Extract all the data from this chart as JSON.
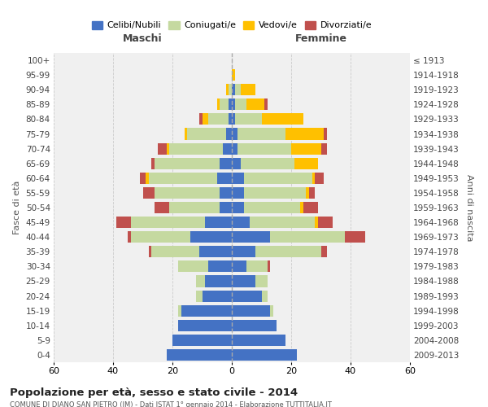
{
  "age_groups": [
    "0-4",
    "5-9",
    "10-14",
    "15-19",
    "20-24",
    "25-29",
    "30-34",
    "35-39",
    "40-44",
    "45-49",
    "50-54",
    "55-59",
    "60-64",
    "65-69",
    "70-74",
    "75-79",
    "80-84",
    "85-89",
    "90-94",
    "95-99",
    "100+"
  ],
  "birth_years": [
    "2009-2013",
    "2004-2008",
    "1999-2003",
    "1994-1998",
    "1989-1993",
    "1984-1988",
    "1979-1983",
    "1974-1978",
    "1969-1973",
    "1964-1968",
    "1959-1963",
    "1954-1958",
    "1949-1953",
    "1944-1948",
    "1939-1943",
    "1934-1938",
    "1929-1933",
    "1924-1928",
    "1919-1923",
    "1914-1918",
    "≤ 1913"
  ],
  "maschi": {
    "celibi": [
      22,
      20,
      18,
      17,
      10,
      9,
      8,
      11,
      14,
      9,
      4,
      4,
      5,
      4,
      3,
      2,
      1,
      1,
      0,
      0,
      0
    ],
    "coniugati": [
      0,
      0,
      0,
      1,
      2,
      3,
      10,
      16,
      20,
      25,
      17,
      22,
      23,
      22,
      18,
      13,
      7,
      3,
      1,
      0,
      0
    ],
    "vedovi": [
      0,
      0,
      0,
      0,
      0,
      0,
      0,
      0,
      0,
      0,
      0,
      0,
      1,
      0,
      1,
      1,
      2,
      1,
      1,
      0,
      0
    ],
    "divorziati": [
      0,
      0,
      0,
      0,
      0,
      0,
      0,
      1,
      1,
      5,
      5,
      4,
      2,
      1,
      3,
      0,
      1,
      0,
      0,
      0,
      0
    ]
  },
  "femmine": {
    "nubili": [
      22,
      18,
      15,
      13,
      10,
      8,
      5,
      8,
      13,
      6,
      4,
      4,
      4,
      3,
      2,
      2,
      1,
      1,
      1,
      0,
      0
    ],
    "coniugate": [
      0,
      0,
      0,
      1,
      2,
      4,
      7,
      22,
      25,
      22,
      19,
      21,
      23,
      18,
      18,
      16,
      9,
      4,
      2,
      0,
      0
    ],
    "vedove": [
      0,
      0,
      0,
      0,
      0,
      0,
      0,
      0,
      0,
      1,
      1,
      1,
      1,
      8,
      10,
      13,
      14,
      6,
      5,
      1,
      0
    ],
    "divorziate": [
      0,
      0,
      0,
      0,
      0,
      0,
      1,
      2,
      7,
      5,
      5,
      2,
      3,
      0,
      2,
      1,
      0,
      1,
      0,
      0,
      0
    ]
  },
  "colors": {
    "celibi": "#4472c4",
    "coniugati": "#c5d9a0",
    "vedovi": "#ffc000",
    "divorziati": "#c0504d"
  },
  "xlim": 60,
  "title": "Popolazione per età, sesso e stato civile - 2014",
  "subtitle": "COMUNE DI DIANO SAN PIETRO (IM) - Dati ISTAT 1° gennaio 2014 - Elaborazione TUTTITALIA.IT",
  "ylabel_left": "Fasce di età",
  "ylabel_right": "Anni di nascita",
  "xlabel_maschi": "Maschi",
  "xlabel_femmine": "Femmine",
  "bg_color": "#f0f0f0",
  "grid_color": "#cccccc"
}
